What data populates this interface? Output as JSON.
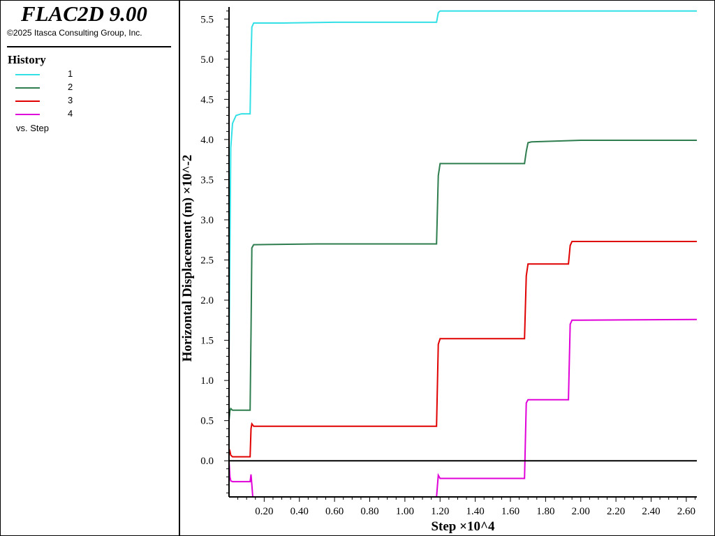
{
  "app": {
    "title": "FLAC2D 9.00",
    "copyright": "©2025 Itasca Consulting Group, Inc."
  },
  "legend": {
    "title": "History",
    "items": [
      {
        "label": "1",
        "color": "#33e0e6"
      },
      {
        "label": "2",
        "color": "#2e7d4f"
      },
      {
        "label": "3",
        "color": "#e00000"
      },
      {
        "label": "4",
        "color": "#e000d8"
      }
    ],
    "vs_label": "vs. Step"
  },
  "chart_data": {
    "type": "line",
    "xlabel": "Step ×10^4",
    "ylabel": "Horizontal Displacement (m) ×10^-2",
    "xlim": [
      0.0,
      2.66
    ],
    "ylim": [
      -0.45,
      5.65
    ],
    "x_ticks": [
      0.2,
      0.4,
      0.6,
      0.8,
      1.0,
      1.2,
      1.4,
      1.6,
      1.8,
      2.0,
      2.2,
      2.4,
      2.6
    ],
    "x_tick_labels": [
      "0.20",
      "0.40",
      "0.60",
      "0.80",
      "1.00",
      "1.20",
      "1.40",
      "1.60",
      "1.80",
      "2.00",
      "2.20",
      "2.40",
      "2.60"
    ],
    "y_ticks": [
      0.0,
      0.5,
      1.0,
      1.5,
      2.0,
      2.5,
      3.0,
      3.5,
      4.0,
      4.5,
      5.0,
      5.5
    ],
    "y_tick_labels": [
      "0.0",
      "0.5",
      "1.0",
      "1.5",
      "2.0",
      "2.5",
      "3.0",
      "3.5",
      "4.0",
      "4.5",
      "5.0",
      "5.5"
    ],
    "zero_line": true,
    "grid": false,
    "series": [
      {
        "name": "1",
        "color": "#33e0e6",
        "x": [
          0.0,
          0.01,
          0.02,
          0.04,
          0.07,
          0.12,
          0.125,
          0.13,
          0.14,
          0.3,
          0.6,
          1.18,
          1.19,
          1.2,
          1.5,
          2.0,
          2.66
        ],
        "y": [
          1.3,
          3.9,
          4.2,
          4.3,
          4.32,
          4.32,
          5.0,
          5.4,
          5.45,
          5.45,
          5.46,
          5.46,
          5.58,
          5.6,
          5.6,
          5.6,
          5.6
        ]
      },
      {
        "name": "2",
        "color": "#2e7d4f",
        "x": [
          0.0,
          0.005,
          0.01,
          0.02,
          0.12,
          0.125,
          0.13,
          0.14,
          0.5,
          1.18,
          1.19,
          1.2,
          1.5,
          1.68,
          1.69,
          1.7,
          1.72,
          2.0,
          2.66
        ],
        "y": [
          0.5,
          0.62,
          0.65,
          0.63,
          0.63,
          1.6,
          2.65,
          2.69,
          2.7,
          2.7,
          3.55,
          3.7,
          3.7,
          3.7,
          3.85,
          3.96,
          3.97,
          3.99,
          3.99
        ],
        "note_visible": false
      },
      {
        "name": "3",
        "color": "#e00000",
        "x": [
          0.0,
          0.005,
          0.01,
          0.02,
          0.12,
          0.125,
          0.13,
          0.14,
          0.3,
          1.18,
          1.19,
          1.2,
          1.3,
          1.68,
          1.69,
          1.7,
          1.93,
          1.94,
          1.95,
          2.0,
          2.66
        ],
        "y": [
          0.15,
          0.12,
          0.07,
          0.05,
          0.05,
          0.4,
          0.46,
          0.43,
          0.43,
          0.43,
          1.45,
          1.52,
          1.52,
          1.52,
          2.3,
          2.45,
          2.45,
          2.68,
          2.73,
          2.73,
          2.73
        ]
      },
      {
        "name": "4",
        "color": "#e000d8",
        "x": [
          0.0,
          0.005,
          0.01,
          0.02,
          0.12,
          0.125,
          0.13,
          0.135,
          0.14,
          0.3,
          1.18,
          1.19,
          1.2,
          1.3,
          1.68,
          1.69,
          1.7,
          1.93,
          1.94,
          1.95,
          2.0,
          2.66
        ],
        "y": [
          0.0,
          -0.2,
          -0.25,
          -0.26,
          -0.26,
          -0.17,
          -0.3,
          -0.45,
          -0.45,
          -0.45,
          -0.45,
          -0.18,
          -0.22,
          -0.22,
          -0.22,
          0.72,
          0.76,
          0.76,
          1.7,
          1.75,
          1.75,
          1.76
        ]
      }
    ]
  }
}
